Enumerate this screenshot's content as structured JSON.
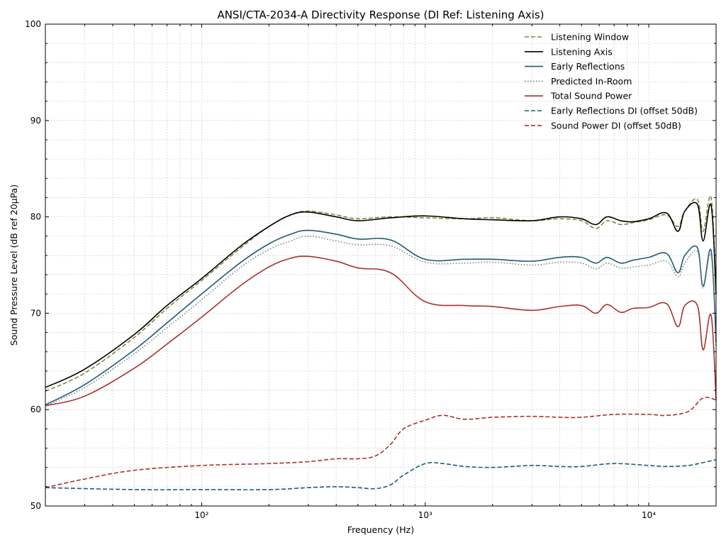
{
  "chart_data": {
    "type": "line",
    "title": "ANSI/CTA-2034-A Directivity Response (DI Ref: Listening Axis)",
    "xlabel": "Frequency (Hz)",
    "ylabel": "Sound Pressure Level (dB ref 20μPa)",
    "xscale": "log",
    "xlim": [
      20,
      20000
    ],
    "ylim": [
      50,
      100
    ],
    "yticks": [
      50,
      60,
      70,
      80,
      90,
      100
    ],
    "xticks": [
      {
        "value": 100,
        "label": "10²"
      },
      {
        "value": 1000,
        "label": "10³"
      },
      {
        "value": 10000,
        "label": "10⁴"
      }
    ],
    "grid": true,
    "legend_position": "top-right",
    "series": [
      {
        "name": "Listening Window",
        "color": "#7a8b3e",
        "dash": "dashed",
        "x": [
          20,
          30,
          50,
          70,
          100,
          150,
          200,
          250,
          300,
          400,
          500,
          700,
          1000,
          1500,
          2000,
          3000,
          4000,
          5000,
          5800,
          6500,
          7500,
          8500,
          10000,
          12000,
          13500,
          14500,
          16500,
          17500,
          19000,
          20000
        ],
        "y": [
          61.9,
          63.8,
          67.5,
          70.5,
          73.4,
          76.8,
          79.0,
          80.2,
          80.6,
          80.2,
          79.8,
          80.0,
          79.9,
          79.8,
          79.9,
          79.6,
          79.8,
          79.6,
          78.8,
          79.6,
          79.2,
          79.4,
          79.7,
          80.2,
          79.0,
          80.6,
          81.8,
          78.5,
          82.0,
          72.0
        ]
      },
      {
        "name": "Listening Axis",
        "color": "#000000",
        "dash": "solid",
        "x": [
          20,
          30,
          50,
          70,
          100,
          150,
          200,
          250,
          300,
          400,
          500,
          700,
          1000,
          1500,
          2000,
          3000,
          4000,
          5000,
          5800,
          6500,
          7500,
          8500,
          10000,
          12000,
          13500,
          14500,
          16500,
          17500,
          19000,
          20000
        ],
        "y": [
          62.3,
          64.2,
          67.8,
          70.8,
          73.6,
          77.0,
          79.0,
          80.2,
          80.5,
          80.0,
          79.6,
          79.9,
          80.1,
          79.8,
          79.7,
          79.6,
          80.0,
          79.8,
          79.2,
          80.0,
          79.6,
          79.5,
          79.8,
          80.4,
          78.5,
          80.6,
          81.3,
          77.5,
          81.2,
          72.0
        ]
      },
      {
        "name": "Early Reflections",
        "color": "#1f5c73",
        "dash": "solid",
        "x": [
          20,
          30,
          50,
          70,
          100,
          150,
          200,
          250,
          300,
          400,
          500,
          700,
          1000,
          1500,
          2000,
          3000,
          4000,
          5000,
          5800,
          6500,
          7500,
          8500,
          10000,
          12000,
          13500,
          14500,
          16500,
          17500,
          19000,
          20000
        ],
        "y": [
          60.5,
          62.6,
          66.2,
          69.0,
          72.0,
          75.3,
          77.2,
          78.2,
          78.6,
          78.2,
          77.7,
          77.6,
          75.6,
          75.6,
          75.6,
          75.4,
          75.8,
          75.8,
          75.2,
          75.8,
          75.2,
          75.5,
          75.8,
          76.2,
          74.2,
          76.0,
          76.8,
          72.8,
          76.5,
          67.0
        ]
      },
      {
        "name": "Predicted In-Room",
        "color": "#7f7f7f",
        "dash": "dotted",
        "x": [
          20,
          30,
          50,
          70,
          100,
          150,
          200,
          250,
          300,
          400,
          500,
          700,
          1000,
          1500,
          2000,
          3000,
          4000,
          5000,
          5800,
          6500,
          7500,
          8500,
          10000,
          12000,
          13500,
          14500,
          16500,
          17500,
          19000,
          20000
        ],
        "y": [
          60.4,
          62.3,
          65.8,
          68.5,
          71.4,
          74.8,
          76.6,
          77.5,
          78.0,
          77.5,
          77.1,
          77.0,
          75.3,
          75.2,
          75.3,
          75.0,
          75.3,
          75.2,
          74.6,
          75.2,
          74.7,
          74.8,
          75.0,
          75.4,
          73.8,
          75.2,
          76.4,
          72.6,
          76.0,
          66.5
        ]
      },
      {
        "name": "Total Sound Power",
        "color": "#a83232",
        "dash": "solid",
        "x": [
          20,
          30,
          50,
          70,
          100,
          150,
          200,
          250,
          300,
          400,
          500,
          700,
          1000,
          1500,
          2000,
          3000,
          4000,
          5000,
          5800,
          6500,
          7500,
          8500,
          10000,
          12000,
          13500,
          14500,
          16500,
          17500,
          19000,
          20000
        ],
        "y": [
          60.4,
          61.4,
          64.3,
          66.8,
          69.6,
          72.9,
          74.8,
          75.7,
          75.9,
          75.4,
          74.7,
          74.2,
          71.2,
          70.8,
          70.7,
          70.3,
          70.7,
          70.8,
          70.0,
          70.9,
          70.1,
          70.5,
          70.6,
          71.0,
          68.6,
          70.8,
          70.8,
          66.2,
          69.8,
          61.0
        ]
      },
      {
        "name": "Early Reflections DI (offset 50dB)",
        "color": "#1f5c73",
        "dash": "dashed",
        "x": [
          20,
          50,
          100,
          200,
          300,
          400,
          500,
          600,
          700,
          800,
          1000,
          1200,
          1500,
          2000,
          3000,
          4000,
          5000,
          7000,
          10000,
          12000,
          15000,
          17500,
          20000
        ],
        "y": [
          51.9,
          51.7,
          51.7,
          51.7,
          51.9,
          52.0,
          51.9,
          51.8,
          52.2,
          53.2,
          54.4,
          54.4,
          54.1,
          54.0,
          54.2,
          54.1,
          54.1,
          54.4,
          54.2,
          54.1,
          54.2,
          54.5,
          54.8
        ]
      },
      {
        "name": "Sound Power DI (offset 50dB)",
        "color": "#a83232",
        "dash": "dashed",
        "x": [
          20,
          30,
          50,
          100,
          200,
          300,
          400,
          500,
          600,
          700,
          800,
          1000,
          1200,
          1500,
          2000,
          3000,
          4000,
          5000,
          7000,
          10000,
          12000,
          15000,
          17500,
          20000
        ],
        "y": [
          51.9,
          52.8,
          53.7,
          54.2,
          54.4,
          54.6,
          54.9,
          54.9,
          55.2,
          56.4,
          58.0,
          58.9,
          59.4,
          59.0,
          59.2,
          59.3,
          59.2,
          59.2,
          59.5,
          59.5,
          59.4,
          59.8,
          61.2,
          61.0
        ]
      }
    ]
  }
}
